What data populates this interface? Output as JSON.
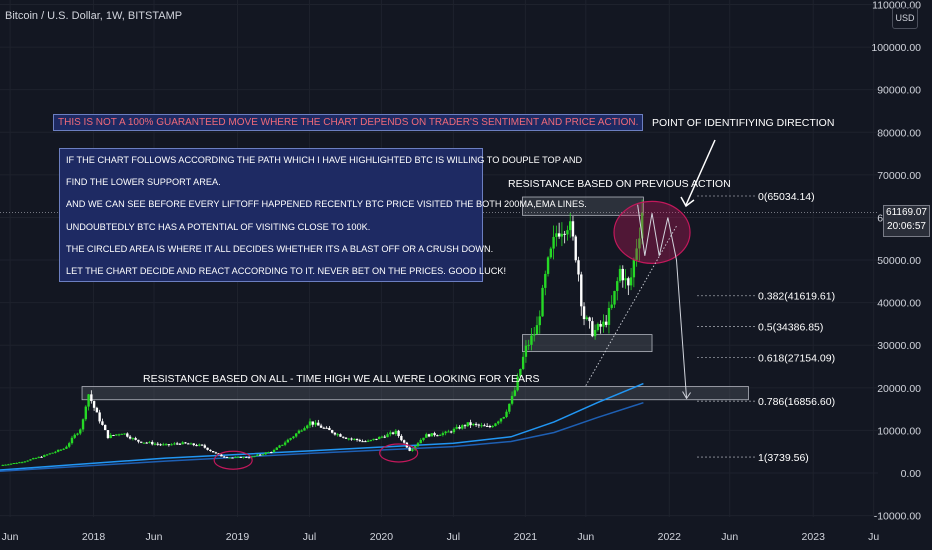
{
  "header": {
    "title": "Bitcoin / U.S. Dollar, 1W, BITSTAMP",
    "currency": "USD"
  },
  "price_badge": {
    "price": "61169.07",
    "countdown": "20:06:57"
  },
  "disclaimer": "THIS IS NOT A 100% GUARANTEED MOVE WHERE THE CHART DEPENDS ON TRADER'S SENTIMENT AND PRICE ACTION.",
  "note_lines": [
    "IF THE CHART FOLLOWS ACCORDING THE PATH WHICH I HAVE HIGHLIGHTED BTC IS WILLING TO DOUPLE TOP AND",
    "FIND THE LOWER SUPPORT AREA.",
    "AND WE CAN SEE BEFORE EVERY LIFTOFF HAPPENED RECENTLY BTC PRICE VISITED THE BOTH 200MA,EMA LINES.",
    "UNDOUBTEDLY BTC HAS A POTENTIAL OF VISITING CLOSE TO 100K.",
    "THE CIRCLED AREA IS WHERE IT ALL DECIDES WHETHER ITS A BLAST OFF OR A CRUSH DOWN.",
    "LET THE CHART DECIDE AND REACT ACCORDING TO IT. NEVER BET ON THE PRICES. GOOD LUCK!"
  ],
  "colors": {
    "background": "#131722",
    "up": "#26d926",
    "down": "#ffffff",
    "ma_light": "#2196f3",
    "ma_dark": "#1e5fb3",
    "zone": "#787b86",
    "circle": "#c2185b",
    "fib_line": "#9598a1"
  },
  "chart_data": {
    "type": "candlestick",
    "y_ticks": [
      "110000.00",
      "100000.00",
      "90000.00",
      "80000.00",
      "70000.00",
      "60000.00",
      "50000.00",
      "40000.00",
      "30000.00",
      "20000.00",
      "10000.00",
      "0.00",
      "-10000.00"
    ],
    "ylim": [
      -10000,
      110000
    ],
    "x_ticks": [
      "Jun",
      "2018",
      "Jun",
      "2019",
      "Jul",
      "2020",
      "Jul",
      "2021",
      "Jun",
      "2022",
      "Jun",
      "2023",
      "Ju"
    ],
    "x_tick_pos": [
      2017.42,
      2018.0,
      2018.42,
      2019.0,
      2019.5,
      2020.0,
      2020.5,
      2021.0,
      2021.42,
      2022.0,
      2022.42,
      2023.0,
      2023.42
    ],
    "xlim": [
      2017.35,
      2023.45
    ],
    "current_price": 61169.07,
    "close_path": [
      [
        2017.35,
        1800
      ],
      [
        2017.5,
        2600
      ],
      [
        2017.65,
        4000
      ],
      [
        2017.8,
        5800
      ],
      [
        2017.92,
        11000
      ],
      [
        2017.96,
        19000
      ],
      [
        2018.02,
        14000
      ],
      [
        2018.1,
        8500
      ],
      [
        2018.2,
        9500
      ],
      [
        2018.3,
        7500
      ],
      [
        2018.4,
        7000
      ],
      [
        2018.5,
        6500
      ],
      [
        2018.6,
        7000
      ],
      [
        2018.75,
        6400
      ],
      [
        2018.88,
        4000
      ],
      [
        2018.96,
        3600
      ],
      [
        2019.1,
        3800
      ],
      [
        2019.25,
        5200
      ],
      [
        2019.4,
        9000
      ],
      [
        2019.5,
        12000
      ],
      [
        2019.6,
        10500
      ],
      [
        2019.75,
        8300
      ],
      [
        2019.9,
        7300
      ],
      [
        2020.0,
        8500
      ],
      [
        2020.1,
        9600
      ],
      [
        2020.2,
        5200
      ],
      [
        2020.3,
        8800
      ],
      [
        2020.45,
        9400
      ],
      [
        2020.6,
        11500
      ],
      [
        2020.75,
        10700
      ],
      [
        2020.85,
        13500
      ],
      [
        2020.92,
        18500
      ],
      [
        2021.0,
        29000
      ],
      [
        2021.08,
        34000
      ],
      [
        2021.15,
        48000
      ],
      [
        2021.22,
        57000
      ],
      [
        2021.3,
        59000
      ],
      [
        2021.36,
        50000
      ],
      [
        2021.4,
        37000
      ],
      [
        2021.47,
        33000
      ],
      [
        2021.55,
        35000
      ],
      [
        2021.6,
        39000
      ],
      [
        2021.66,
        48000
      ],
      [
        2021.72,
        43000
      ],
      [
        2021.78,
        55000
      ],
      [
        2021.82,
        61169
      ]
    ],
    "moving_averages": [
      {
        "points": [
          [
            2017.35,
            700
          ],
          [
            2018.5,
            3500
          ],
          [
            2019.5,
            5200
          ],
          [
            2020.5,
            7000
          ],
          [
            2020.9,
            8500
          ],
          [
            2021.2,
            12000
          ],
          [
            2021.5,
            16500
          ],
          [
            2021.82,
            21000
          ]
        ]
      },
      {
        "points": [
          [
            2017.35,
            400
          ],
          [
            2018.5,
            2800
          ],
          [
            2019.5,
            4600
          ],
          [
            2020.5,
            6200
          ],
          [
            2020.9,
            7400
          ],
          [
            2021.2,
            9500
          ],
          [
            2021.5,
            13000
          ],
          [
            2021.82,
            16500
          ]
        ]
      }
    ],
    "fibonacci": [
      {
        "label": "0(65034.14)",
        "price": 65034.14
      },
      {
        "label": "0.382(41619.61)",
        "price": 41619.61
      },
      {
        "label": "0.5(34386.85)",
        "price": 34386.85
      },
      {
        "label": "0.618(27154.09)",
        "price": 27154.09
      },
      {
        "label": "0.786(16856.60)",
        "price": 16856.6
      },
      {
        "label": "1(3739.56)",
        "price": 3739.56
      }
    ],
    "zones": [
      {
        "x0": 2017.92,
        "x1": 2022.55,
        "y0": 17200,
        "y1": 20300
      },
      {
        "x0": 2020.98,
        "x1": 2021.88,
        "y0": 28500,
        "y1": 32500
      },
      {
        "x0": 2020.98,
        "x1": 2021.82,
        "y0": 60500,
        "y1": 64800
      }
    ],
    "circles": [
      {
        "cx": 2018.97,
        "cy": 3000
      },
      {
        "cx": 2020.12,
        "cy": 4700
      },
      {
        "cx": 2021.88,
        "cy": 56500
      }
    ],
    "annotations": {
      "ath_zone": "RESISTANCE BASED ON ALL - TIME HIGH WE ALL WERE LOOKING FOR YEARS",
      "prev_zone": "RESISTANCE BASED ON PREVIOUS ACTION",
      "direction": "POINT OF IDENTIFIYING DIRECTION"
    }
  }
}
